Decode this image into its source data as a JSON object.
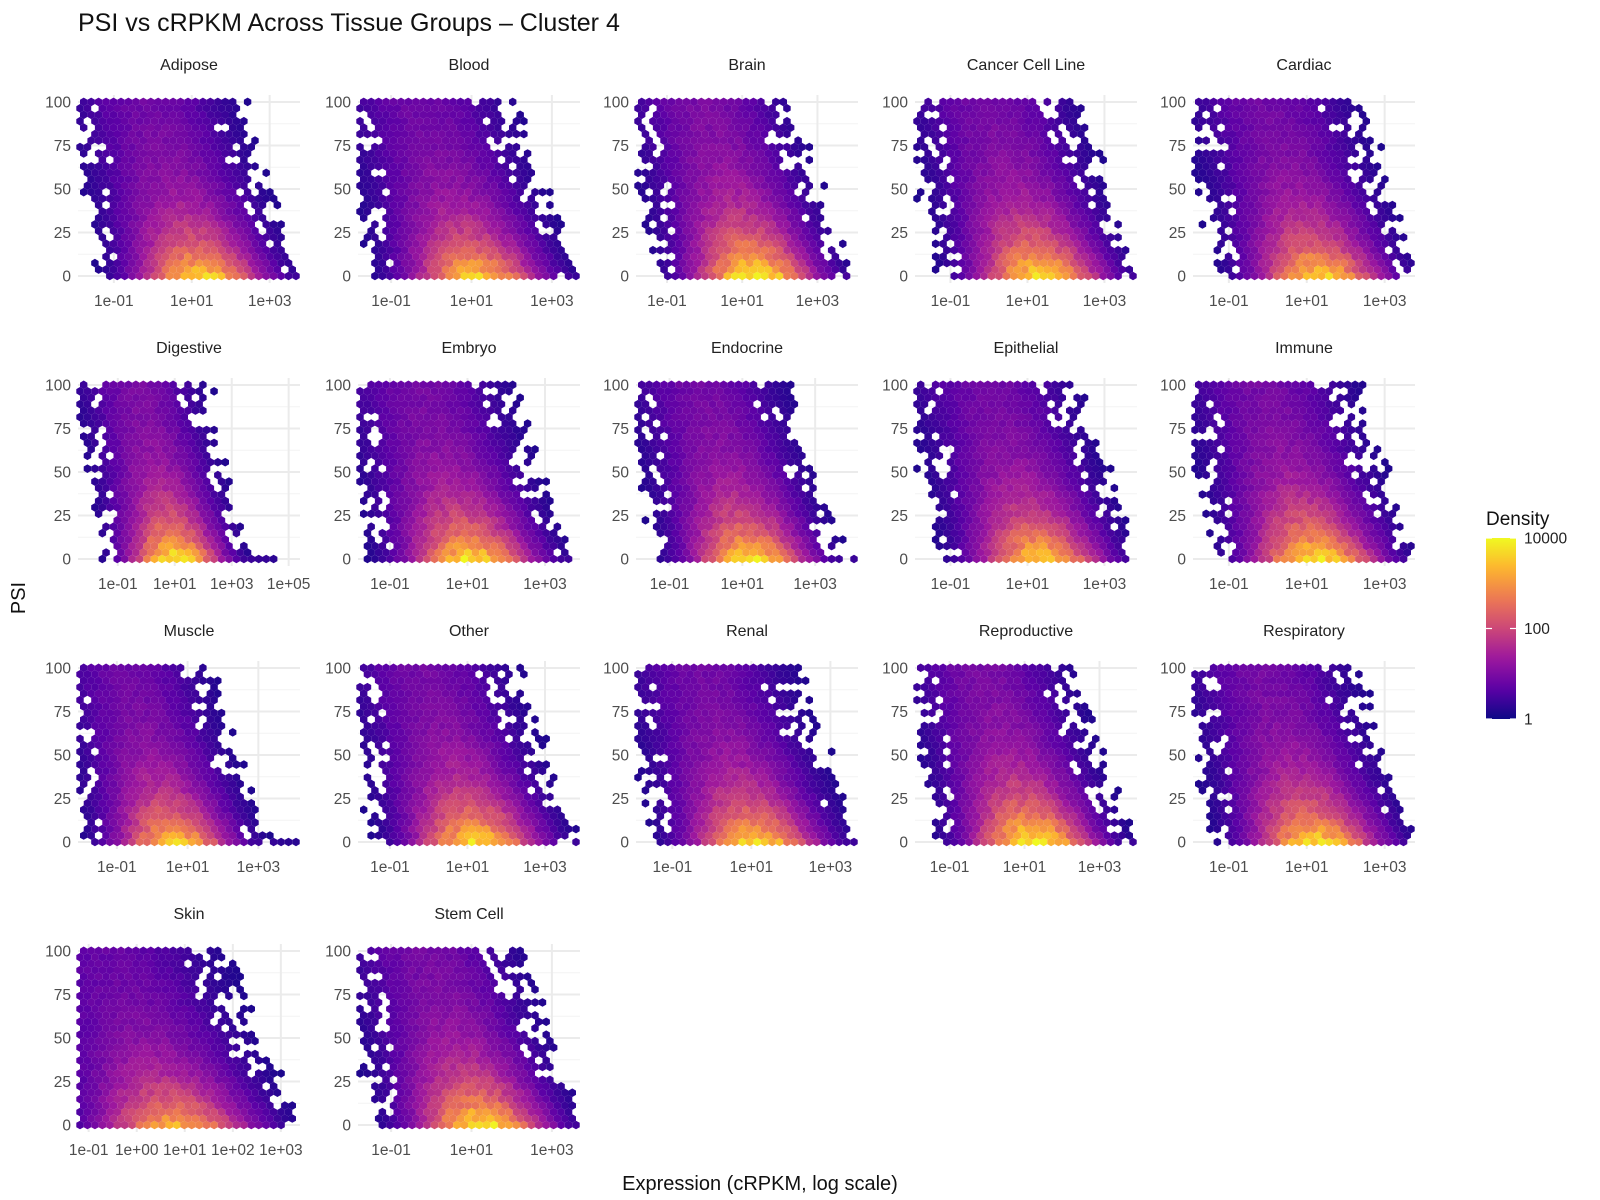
{
  "chart_data": {
    "type": "hexbin",
    "title": "PSI vs cRPKM Across Tissue Groups – Cluster 4",
    "xlabel": "Expression (cRPKM, log scale)",
    "ylabel": "PSI",
    "x_scale": "log10",
    "y_ticks": [
      0,
      25,
      50,
      75,
      100
    ],
    "fill_scale": {
      "name": "Density",
      "trans": "log10",
      "palette": "plasma",
      "breaks": [
        1,
        100,
        10000
      ],
      "labels": [
        "1",
        "100",
        "10000"
      ],
      "colors": [
        "#0d0887",
        "#5c01a6",
        "#9c179e",
        "#cc4778",
        "#ed7953",
        "#fdb42f",
        "#f0f921"
      ]
    },
    "legend_position": "right",
    "grid": true,
    "panels": [
      {
        "name": "Adipose",
        "xlim": [
          0.012,
          6000
        ],
        "x_ticks": [
          0.1,
          10,
          1000
        ],
        "x_labels": [
          "1e-01",
          "1e+01",
          "1e+03"
        ],
        "peak_x": 8,
        "peak_density": 4000
      },
      {
        "name": "Blood",
        "xlim": [
          0.015,
          5000
        ],
        "x_ticks": [
          0.1,
          10,
          1000
        ],
        "x_labels": [
          "1e-01",
          "1e+01",
          "1e+03"
        ],
        "peak_x": 6,
        "peak_density": 3000
      },
      {
        "name": "Brain",
        "xlim": [
          0.015,
          12000
        ],
        "x_ticks": [
          0.1,
          10,
          1000
        ],
        "x_labels": [
          "1e-01",
          "1e+01",
          "1e+03"
        ],
        "peak_x": 10,
        "peak_density": 10000
      },
      {
        "name": "Cancer Cell Line",
        "xlim": [
          0.012,
          7000
        ],
        "x_ticks": [
          0.1,
          10,
          1000
        ],
        "x_labels": [
          "1e-01",
          "1e+01",
          "1e+03"
        ],
        "peak_x": 10,
        "peak_density": 6000
      },
      {
        "name": "Cardiac",
        "xlim": [
          0.012,
          6000
        ],
        "x_ticks": [
          0.1,
          10,
          1000
        ],
        "x_labels": [
          "1e-01",
          "1e+01",
          "1e+03"
        ],
        "peak_x": 10,
        "peak_density": 4000
      },
      {
        "name": "Digestive",
        "xlim": [
          0.004,
          250000
        ],
        "x_ticks": [
          0.1,
          10,
          1000,
          100000
        ],
        "x_labels": [
          "1e-01",
          "1e+01",
          "1e+03",
          "1e+05"
        ],
        "peak_x": 5,
        "peak_density": 8000
      },
      {
        "name": "Embryo",
        "xlim": [
          0.015,
          8000
        ],
        "x_ticks": [
          0.1,
          10,
          1000
        ],
        "x_labels": [
          "1e-01",
          "1e+01",
          "1e+03"
        ],
        "peak_x": 6,
        "peak_density": 5000
      },
      {
        "name": "Endocrine",
        "xlim": [
          0.012,
          15000
        ],
        "x_ticks": [
          0.1,
          10,
          1000
        ],
        "x_labels": [
          "1e-01",
          "1e+01",
          "1e+03"
        ],
        "peak_x": 8,
        "peak_density": 5000
      },
      {
        "name": "Epithelial",
        "xlim": [
          0.012,
          7000
        ],
        "x_ticks": [
          0.1,
          10,
          1000
        ],
        "x_labels": [
          "1e-01",
          "1e+01",
          "1e+03"
        ],
        "peak_x": 10,
        "peak_density": 4000
      },
      {
        "name": "Immune",
        "xlim": [
          0.012,
          6000
        ],
        "x_ticks": [
          0.1,
          10,
          1000
        ],
        "x_labels": [
          "1e-01",
          "1e+01",
          "1e+03"
        ],
        "peak_x": 8,
        "peak_density": 6000
      },
      {
        "name": "Muscle",
        "xlim": [
          0.008,
          15000
        ],
        "x_ticks": [
          0.1,
          10,
          1000
        ],
        "x_labels": [
          "1e-01",
          "1e+01",
          "1e+03"
        ],
        "peak_x": 2,
        "peak_density": 3000
      },
      {
        "name": "Other",
        "xlim": [
          0.015,
          8000
        ],
        "x_ticks": [
          0.1,
          10,
          1000
        ],
        "x_labels": [
          "1e-01",
          "1e+01",
          "1e+03"
        ],
        "peak_x": 8,
        "peak_density": 5000
      },
      {
        "name": "Renal",
        "xlim": [
          0.012,
          5000
        ],
        "x_ticks": [
          0.1,
          10,
          1000
        ],
        "x_labels": [
          "1e-01",
          "1e+01",
          "1e+03"
        ],
        "peak_x": 6,
        "peak_density": 4000
      },
      {
        "name": "Reproductive",
        "xlim": [
          0.012,
          10000
        ],
        "x_ticks": [
          0.1,
          10,
          1000
        ],
        "x_labels": [
          "1e-01",
          "1e+01",
          "1e+03"
        ],
        "peak_x": 8,
        "peak_density": 9000
      },
      {
        "name": "Respiratory",
        "xlim": [
          0.012,
          6000
        ],
        "x_ticks": [
          0.1,
          10,
          1000
        ],
        "x_labels": [
          "1e-01",
          "1e+01",
          "1e+03"
        ],
        "peak_x": 8,
        "peak_density": 5000
      },
      {
        "name": "Skin",
        "xlim": [
          0.06,
          2500
        ],
        "x_ticks": [
          0.1,
          1,
          10,
          100,
          1000
        ],
        "x_labels": [
          "1e-01",
          "1e+00",
          "1e+01",
          "1e+02",
          "1e+03"
        ],
        "peak_x": 3,
        "peak_density": 1500
      },
      {
        "name": "Stem Cell",
        "xlim": [
          0.015,
          5000
        ],
        "x_ticks": [
          0.1,
          10,
          1000
        ],
        "x_labels": [
          "1e-01",
          "1e+01",
          "1e+03"
        ],
        "peak_x": 8,
        "peak_density": 6000
      }
    ]
  }
}
